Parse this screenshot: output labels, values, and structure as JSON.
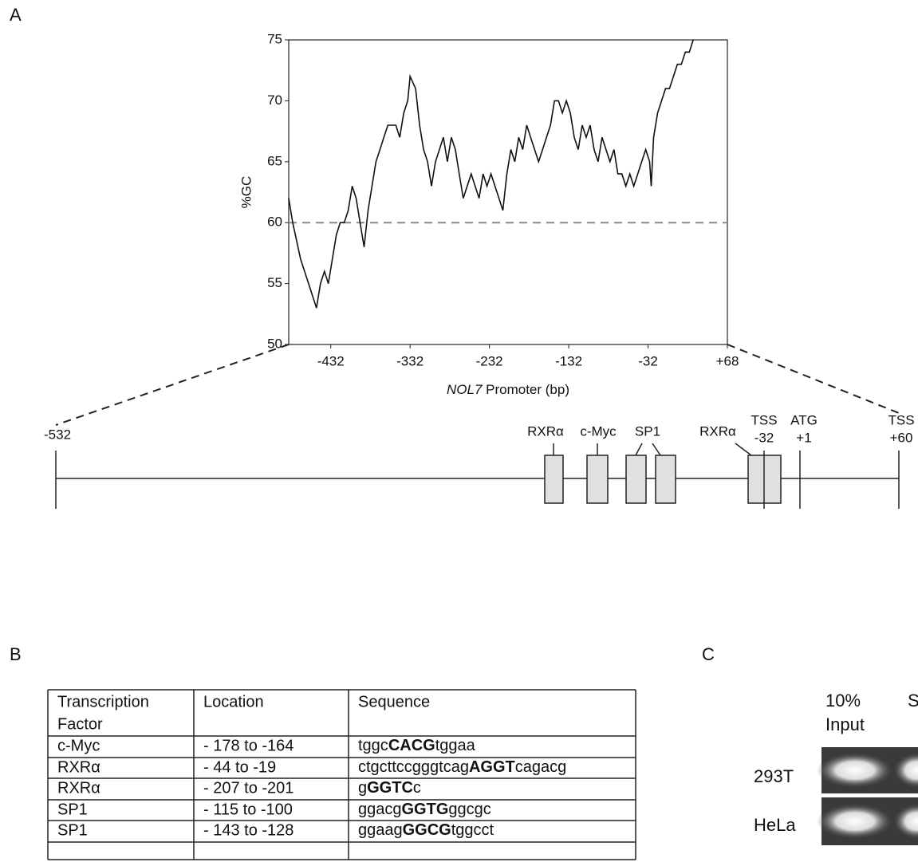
{
  "panel_labels": [
    "A",
    "B",
    "C"
  ],
  "chart_data": {
    "type": "line",
    "ylabel": "%GC",
    "xlabel": [
      "NOL7",
      "Promoter (bp)"
    ],
    "x": [
      -485,
      -480,
      -470,
      -460,
      -455,
      -450,
      -445,
      -440,
      -435,
      -430,
      -425,
      -420,
      -415,
      -410,
      -405,
      -400,
      -395,
      -390,
      -385,
      -380,
      -375,
      -370,
      -365,
      -360,
      -350,
      -345,
      -340,
      -335,
      -332,
      -325,
      -320,
      -315,
      -310,
      -305,
      -300,
      -295,
      -290,
      -285,
      -280,
      -275,
      -270,
      -265,
      -260,
      -255,
      -250,
      -245,
      -240,
      -235,
      -230,
      -225,
      -220,
      -215,
      -210,
      -205,
      -200,
      -195,
      -190,
      -185,
      -180,
      -175,
      -170,
      -165,
      -160,
      -155,
      -150,
      -145,
      -140,
      -135,
      -130,
      -125,
      -120,
      -115,
      -110,
      -105,
      -100,
      -95,
      -90,
      -85,
      -80,
      -75,
      -70,
      -65,
      -60,
      -55,
      -50,
      -45,
      -40,
      -35,
      -30,
      -28,
      -25,
      -20,
      -15,
      -10,
      -5,
      0,
      5,
      10,
      15,
      20,
      25
    ],
    "series": [
      {
        "color": "#111111",
        "values": [
          62,
          60,
          57,
          55,
          54,
          53,
          55,
          56,
          55,
          57,
          59,
          60,
          60,
          61,
          63,
          62,
          60,
          58,
          61,
          63,
          65,
          66,
          67,
          68,
          68,
          67,
          69,
          70,
          72,
          71,
          68,
          66,
          65,
          63,
          65,
          66,
          67,
          65,
          67,
          66,
          64,
          62,
          63,
          64,
          63,
          62,
          64,
          63,
          64,
          63,
          62,
          61,
          64,
          66,
          65,
          67,
          66,
          68,
          67,
          66,
          65,
          66,
          67,
          68,
          70,
          70,
          69,
          70,
          69,
          67,
          66,
          68,
          67,
          68,
          66,
          65,
          67,
          66,
          65,
          66,
          64,
          64,
          63,
          64,
          63,
          64,
          65,
          66,
          65,
          63,
          67,
          69,
          70,
          71,
          71,
          72,
          73,
          73,
          74,
          74,
          75
        ]
      }
    ],
    "xlim": [
      -485,
      68
    ],
    "xticks": [
      -432,
      -332,
      -232,
      -132,
      -32,
      {
        "value": 68,
        "label": "+68"
      }
    ],
    "ylim": [
      50,
      75
    ],
    "yticks": [
      50,
      55,
      60,
      65,
      70,
      75
    ],
    "hline": 60
  },
  "map": {
    "start": "-532",
    "sites": [
      "RXRα",
      "c-Myc",
      "SP1",
      "RXRα"
    ],
    "markers": [
      {
        "name": "TSS",
        "pos": "-32"
      },
      {
        "name": "ATG",
        "pos": "+1"
      },
      {
        "name": "TSS",
        "pos": "+60"
      }
    ]
  },
  "table": {
    "header": [
      [
        "Transcription",
        "Factor"
      ],
      [
        "Location"
      ],
      [
        "Sequence"
      ]
    ],
    "rows": [
      [
        "c-Myc",
        "- 178 to -164",
        [
          "tggc",
          "CACG",
          "tggaa"
        ]
      ],
      [
        "RXRα",
        "- 44 to  -19",
        [
          "ctgcttccgggtcag",
          "AGGT",
          "cagacg"
        ]
      ],
      [
        "RXRα",
        "- 207 to -201",
        [
          "g",
          "GGTC",
          "c"
        ]
      ],
      [
        "SP1",
        "- 115 to -100",
        [
          "ggacg",
          "GGTG",
          "ggcgc"
        ]
      ],
      [
        "SP1",
        "- 143 to -128",
        [
          "ggaag",
          "GGCG",
          "tggcct"
        ]
      ]
    ]
  },
  "gel": {
    "lanes": [
      [
        "10%",
        "Input"
      ],
      [
        "S"
      ]
    ],
    "rows": [
      "293T",
      "HeLa"
    ]
  }
}
